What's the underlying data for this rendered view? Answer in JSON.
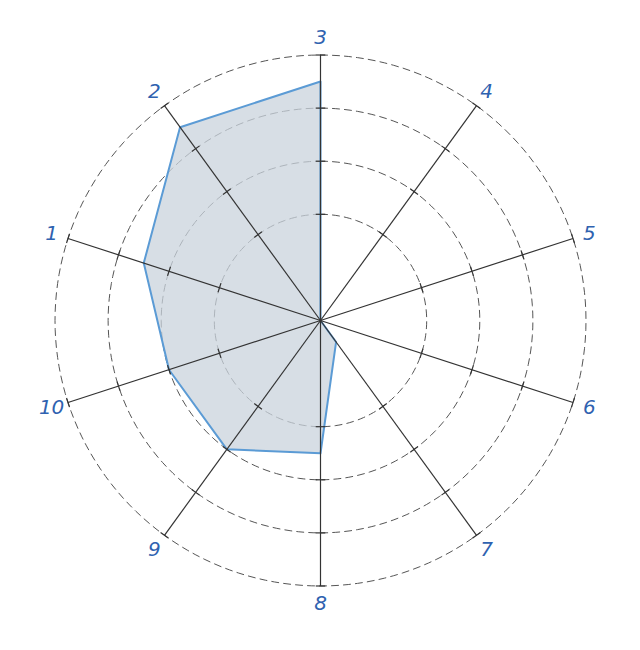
{
  "chart_data": {
    "type": "radar",
    "categories": [
      "1",
      "2",
      "3",
      "4",
      "5",
      "6",
      "7",
      "8",
      "9",
      "10"
    ],
    "values": [
      3.5,
      4.5,
      4.5,
      0,
      0,
      0,
      0.5,
      2.5,
      3,
      3
    ],
    "color": "#5b9bd5",
    "ylim": [
      0,
      5
    ],
    "yticks": [
      2,
      3,
      4,
      5
    ],
    "grid": true,
    "tick_labels": false
  }
}
